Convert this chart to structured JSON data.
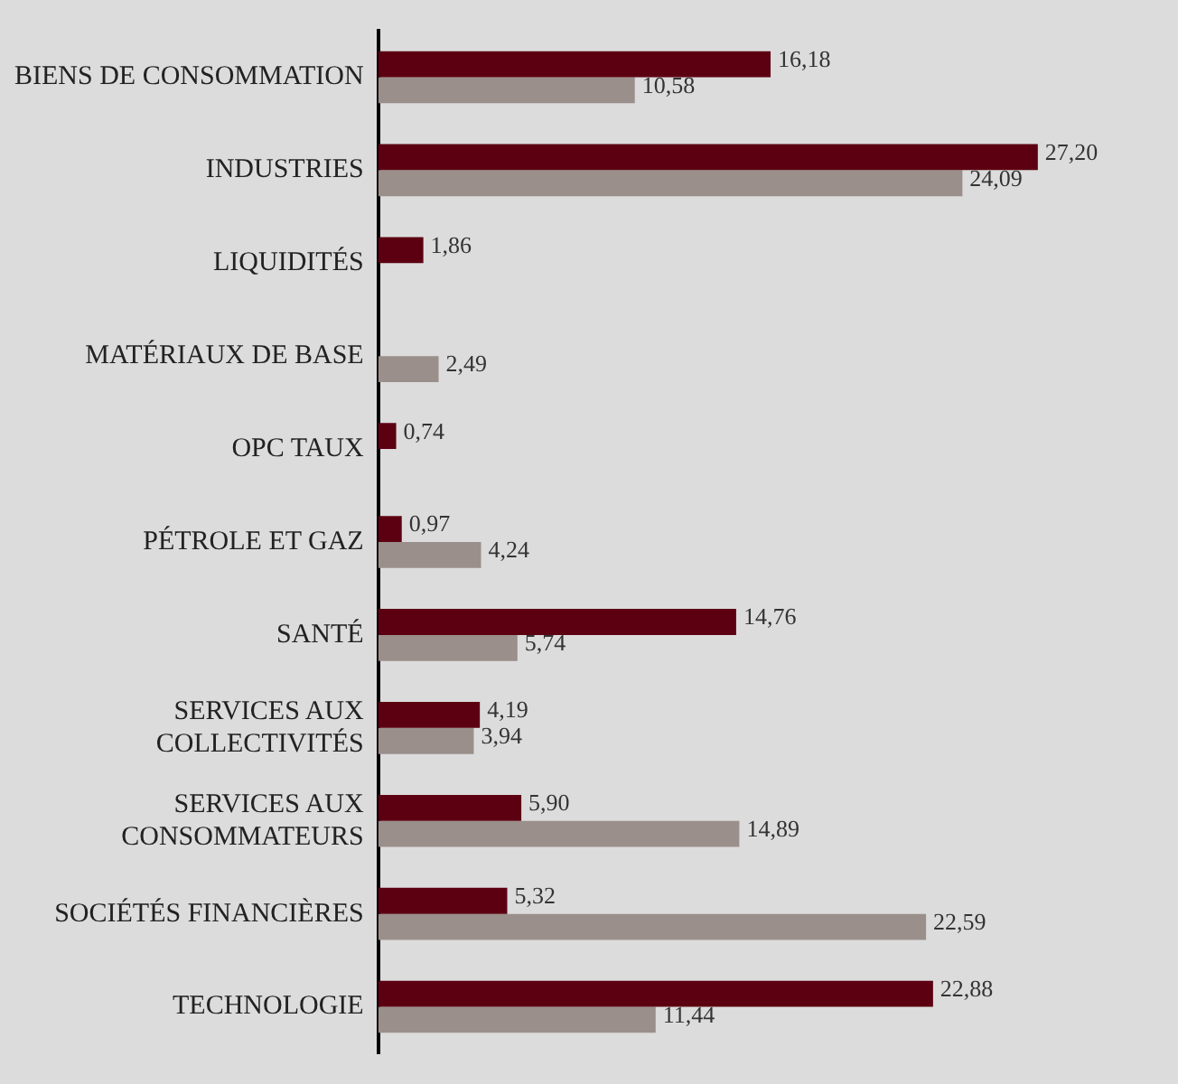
{
  "chart_data": {
    "type": "bar",
    "orientation": "horizontal",
    "categories": [
      "BIENS DE CONSOMMATION",
      "INDUSTRIES",
      "LIQUIDITÉS",
      "MATÉRIAUX DE BASE",
      "OPC TAUX",
      "PÉTROLE ET GAZ",
      "SANTÉ",
      "SERVICES AUX COLLECTIVITÉS",
      "SERVICES AUX CONSOMMATEURS",
      "SOCIÉTÉS FINANCIÈRES",
      "TECHNOLOGIE"
    ],
    "series": [
      {
        "color": "#5c0011",
        "values": [
          16.18,
          27.2,
          1.86,
          null,
          0.74,
          0.97,
          14.76,
          4.19,
          5.9,
          5.32,
          22.88
        ],
        "value_labels": [
          "16,18",
          "27,20",
          "1,86",
          null,
          "0,74",
          "0,97",
          "14,76",
          "4,19",
          "5,90",
          "5,32",
          "22,88"
        ]
      },
      {
        "color": "#9a8f8b",
        "values": [
          10.58,
          24.09,
          null,
          2.49,
          null,
          4.24,
          5.74,
          3.94,
          14.89,
          22.59,
          11.44
        ],
        "value_labels": [
          "10,58",
          "24,09",
          null,
          "2,49",
          null,
          "4,24",
          "5,74",
          "3,94",
          "14,89",
          "22,59",
          "11,44"
        ]
      }
    ],
    "legend": false,
    "tick_labels": "y"
  }
}
